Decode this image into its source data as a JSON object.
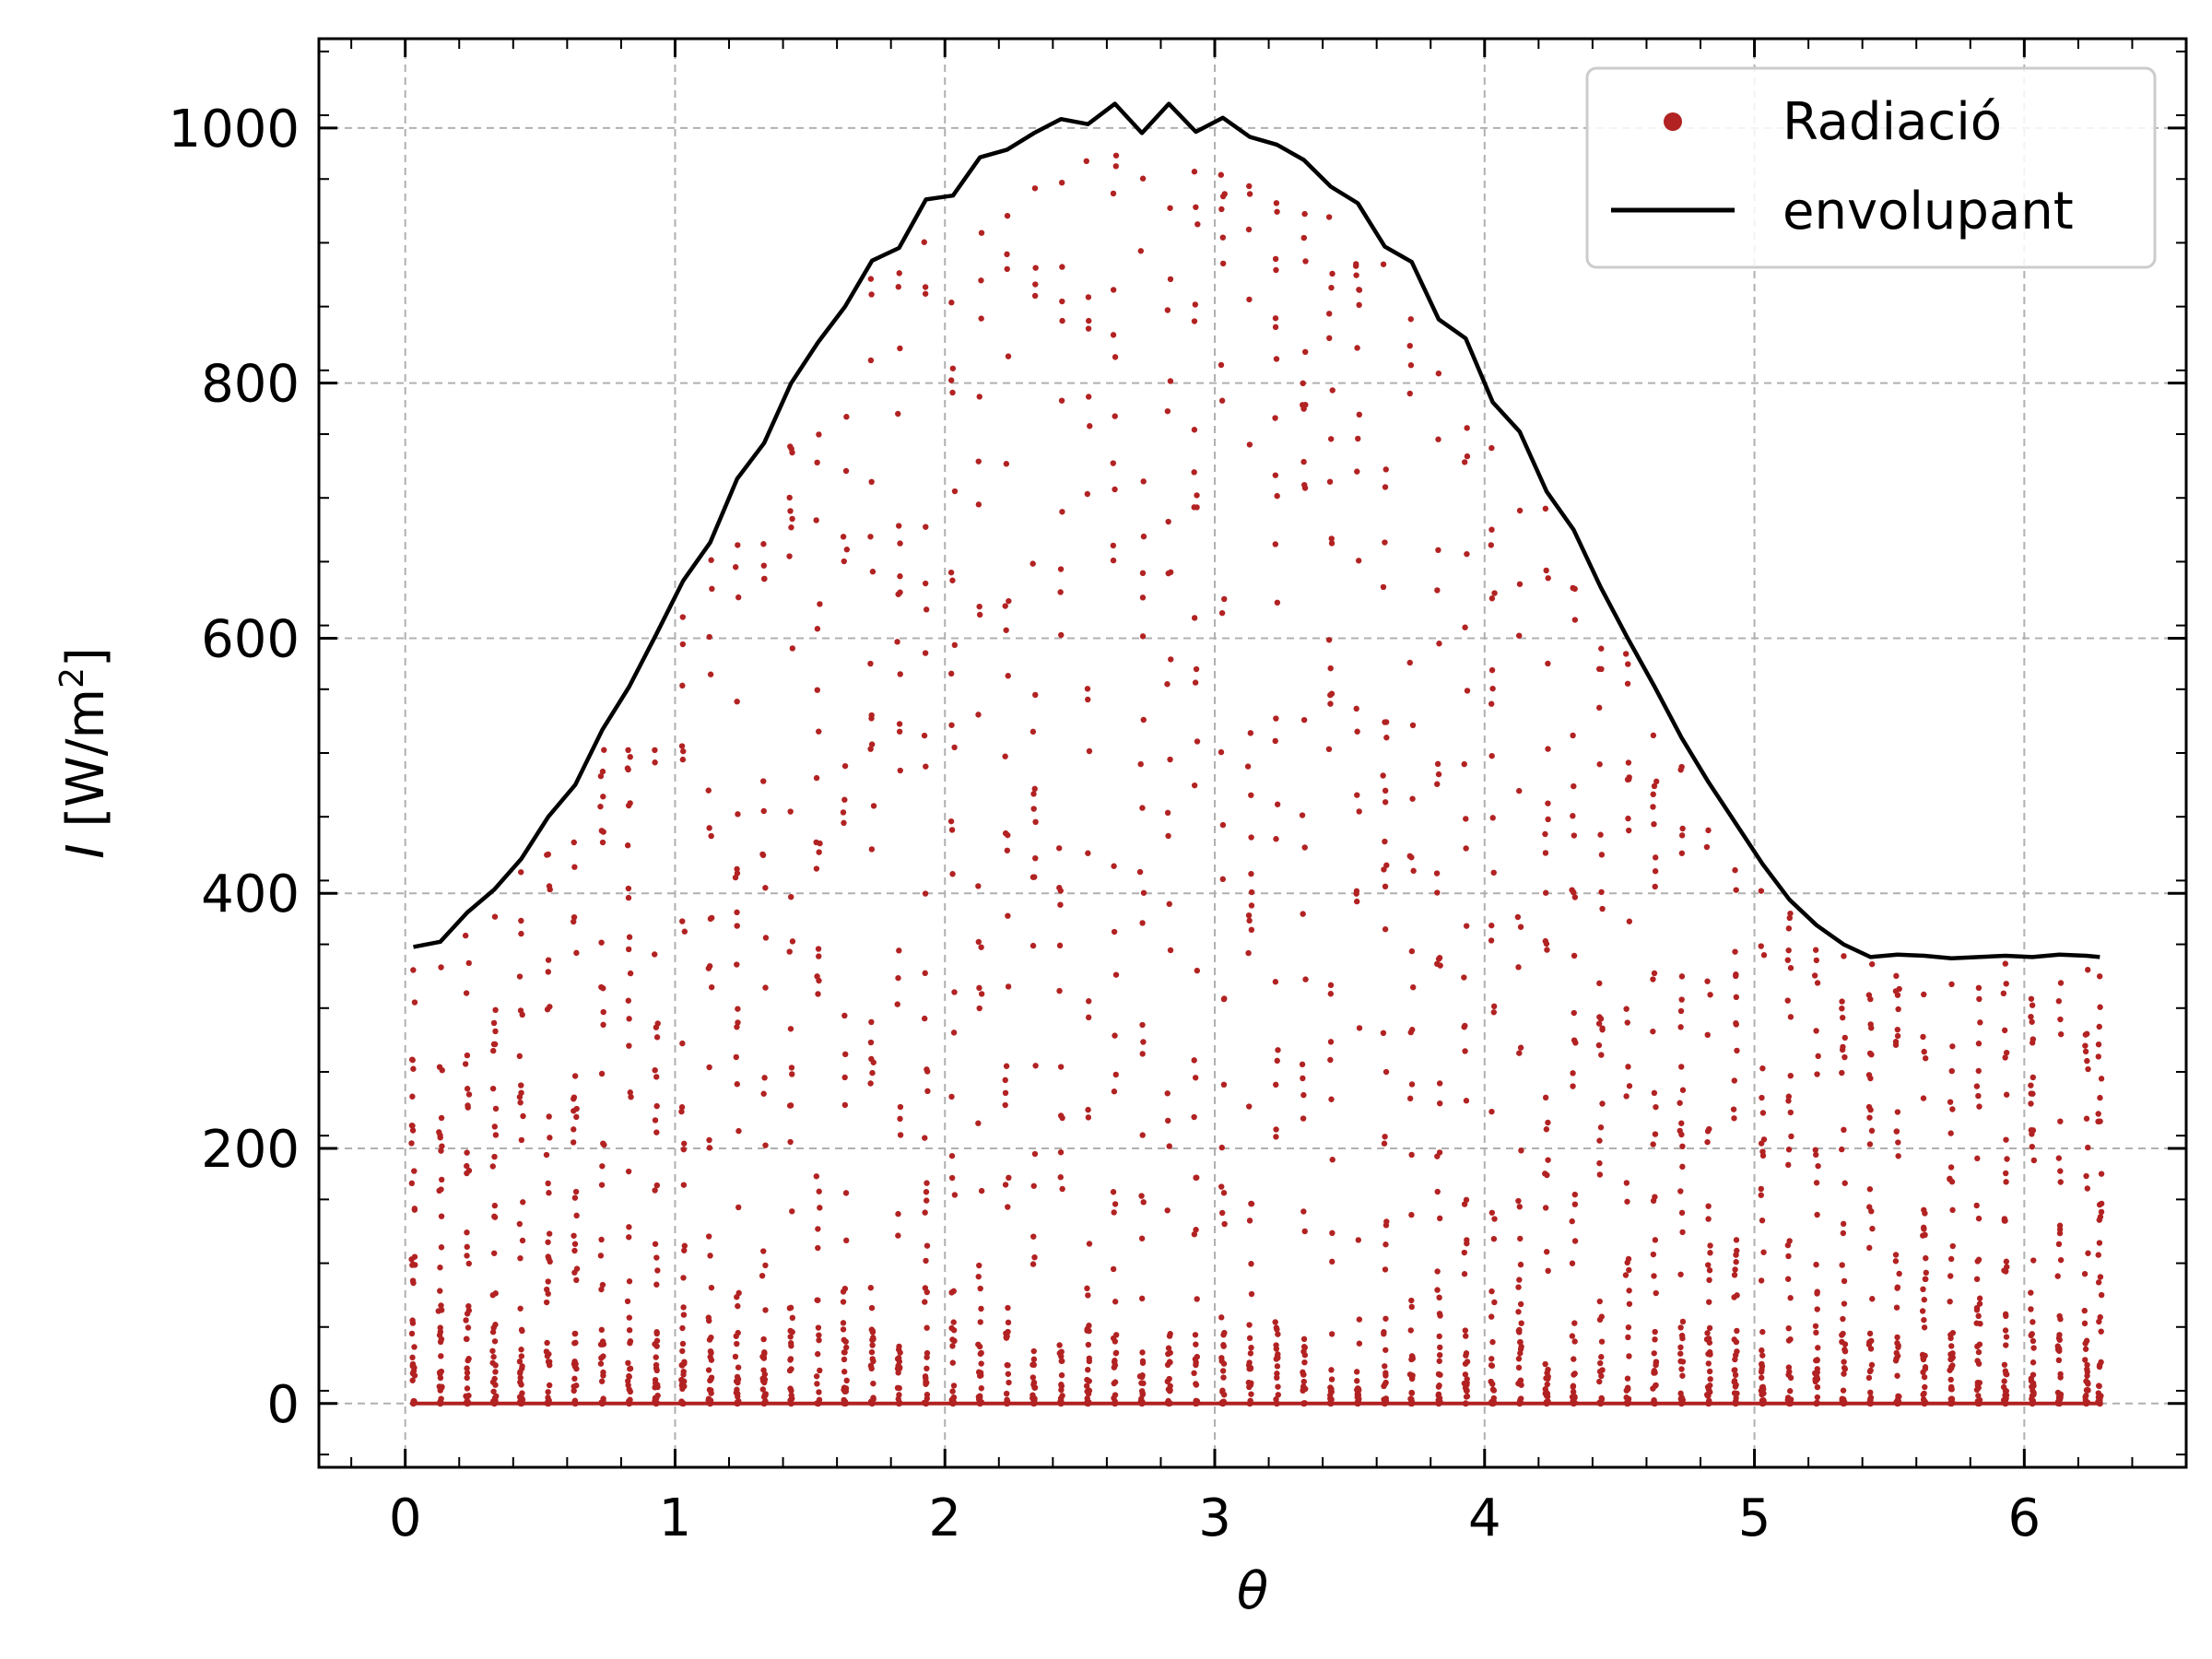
{
  "chart_data": {
    "type": "scatter",
    "title": "",
    "xlabel": "θ",
    "ylabel_italic": "I",
    "ylabel_rest": " [W/m",
    "ylabel_sup": "2",
    "ylabel_close": "]",
    "xlim": [
      -0.32,
      6.6
    ],
    "ylim": [
      -50,
      1070
    ],
    "xticks": [
      0,
      1,
      2,
      3,
      4,
      5,
      6
    ],
    "yticks": [
      0,
      200,
      400,
      600,
      800,
      1000
    ],
    "xtick_labels": [
      "0",
      "1",
      "2",
      "3",
      "4",
      "5",
      "6"
    ],
    "ytick_labels": [
      "0",
      "200",
      "400",
      "600",
      "800",
      "1000"
    ],
    "grid": true,
    "legend_position": "top-right",
    "colors": {
      "scatter": "#b22222",
      "envelope": "#000000",
      "grid": "#b0b0b0"
    },
    "series": [
      {
        "name": "Radiació",
        "kind": "scatter",
        "description_x_range": [
          0.03,
          6.28
        ],
        "x_count": 64
      },
      {
        "name": "envolupant",
        "kind": "line",
        "x": [
          0.03,
          0.13,
          0.23,
          0.33,
          0.43,
          0.53,
          0.63,
          0.73,
          0.83,
          0.93,
          1.03,
          1.13,
          1.23,
          1.33,
          1.43,
          1.53,
          1.63,
          1.73,
          1.83,
          1.93,
          2.03,
          2.13,
          2.23,
          2.33,
          2.43,
          2.53,
          2.63,
          2.73,
          2.83,
          2.93,
          3.03,
          3.13,
          3.23,
          3.33,
          3.43,
          3.53,
          3.63,
          3.73,
          3.83,
          3.93,
          4.03,
          4.13,
          4.23,
          4.33,
          4.43,
          4.53,
          4.63,
          4.73,
          4.83,
          4.93,
          5.03,
          5.13,
          5.23,
          5.33,
          5.43,
          5.53,
          5.63,
          5.73,
          5.83,
          5.93,
          6.03,
          6.13,
          6.23,
          6.28
        ],
        "y": [
          358,
          362,
          385,
          403,
          427,
          460,
          485,
          528,
          562,
          603,
          645,
          675,
          725,
          753,
          800,
          832,
          860,
          896,
          906,
          944,
          947,
          977,
          983,
          996,
          1007,
          1003,
          1019,
          996,
          1019,
          997,
          1008,
          993,
          987,
          975,
          954,
          941,
          907,
          895,
          850,
          835,
          785,
          762,
          715,
          685,
          640,
          600,
          562,
          522,
          487,
          455,
          423,
          395,
          375,
          360,
          350,
          352,
          351,
          349,
          350,
          351,
          350,
          352,
          351,
          350
        ]
      }
    ]
  }
}
